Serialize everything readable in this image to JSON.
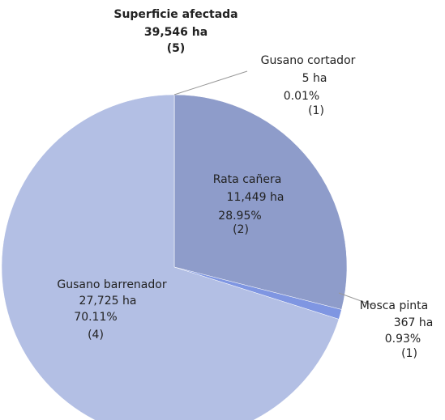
{
  "chart_data": {
    "type": "pie",
    "title": "Superficie afectada",
    "total_label": "39,546 ha",
    "total_count_label": "(5)",
    "categories": [
      "Gusano cortador",
      "Rata cañera",
      "Mosca pinta",
      "Gusano barrenador"
    ],
    "values": [
      5,
      11449,
      367,
      27725
    ],
    "value_labels": [
      "5 ha",
      "11,449 ha",
      "367 ha",
      "27,725  ha"
    ],
    "percent_labels": [
      "0.01%",
      "28.95%",
      "0.93%",
      "70.11%"
    ],
    "count_labels": [
      "(1)",
      "(2)",
      "(1)",
      "(4)"
    ],
    "colors": [
      "#a9b5da",
      "#8e9cca",
      "#7f96e2",
      "#b3bfe4"
    ]
  }
}
